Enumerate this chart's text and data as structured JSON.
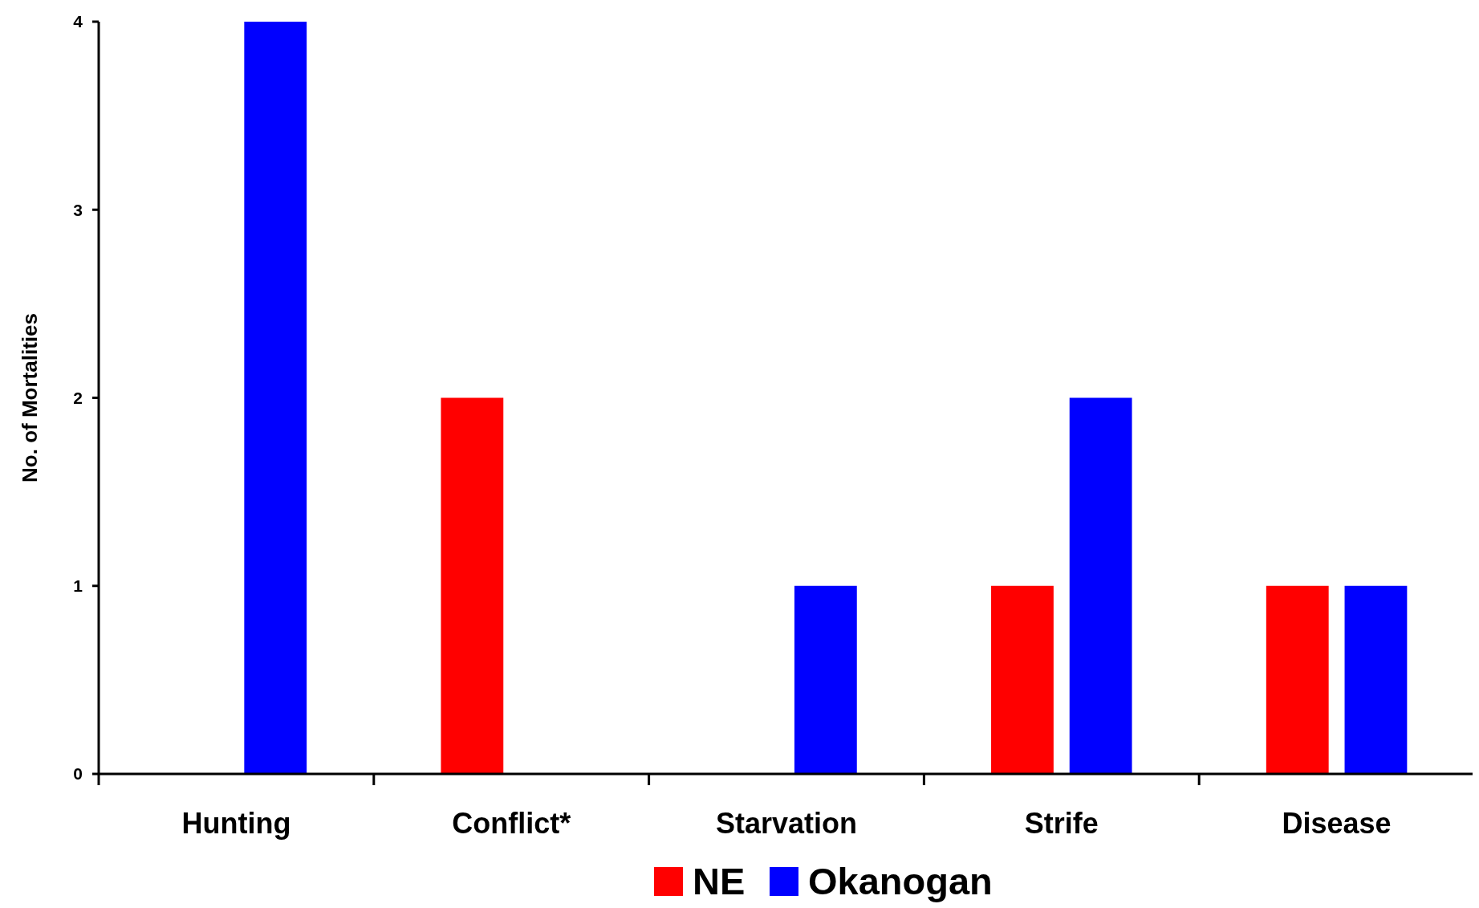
{
  "chart_data": {
    "type": "bar",
    "ylabel": "No. of Mortalities",
    "categories": [
      "Hunting",
      "Conflict*",
      "Starvation",
      "Strife",
      "Disease"
    ],
    "series": [
      {
        "name": "NE",
        "color": "#ff0000",
        "values": [
          0,
          2,
          0,
          1,
          1
        ]
      },
      {
        "name": "Okanogan",
        "color": "#0000ff",
        "values": [
          4,
          0,
          1,
          2,
          1
        ]
      }
    ],
    "ylim": [
      0,
      4
    ],
    "yticks": [
      0,
      1,
      2,
      3,
      4
    ],
    "grid": false,
    "legend": "bottom"
  }
}
